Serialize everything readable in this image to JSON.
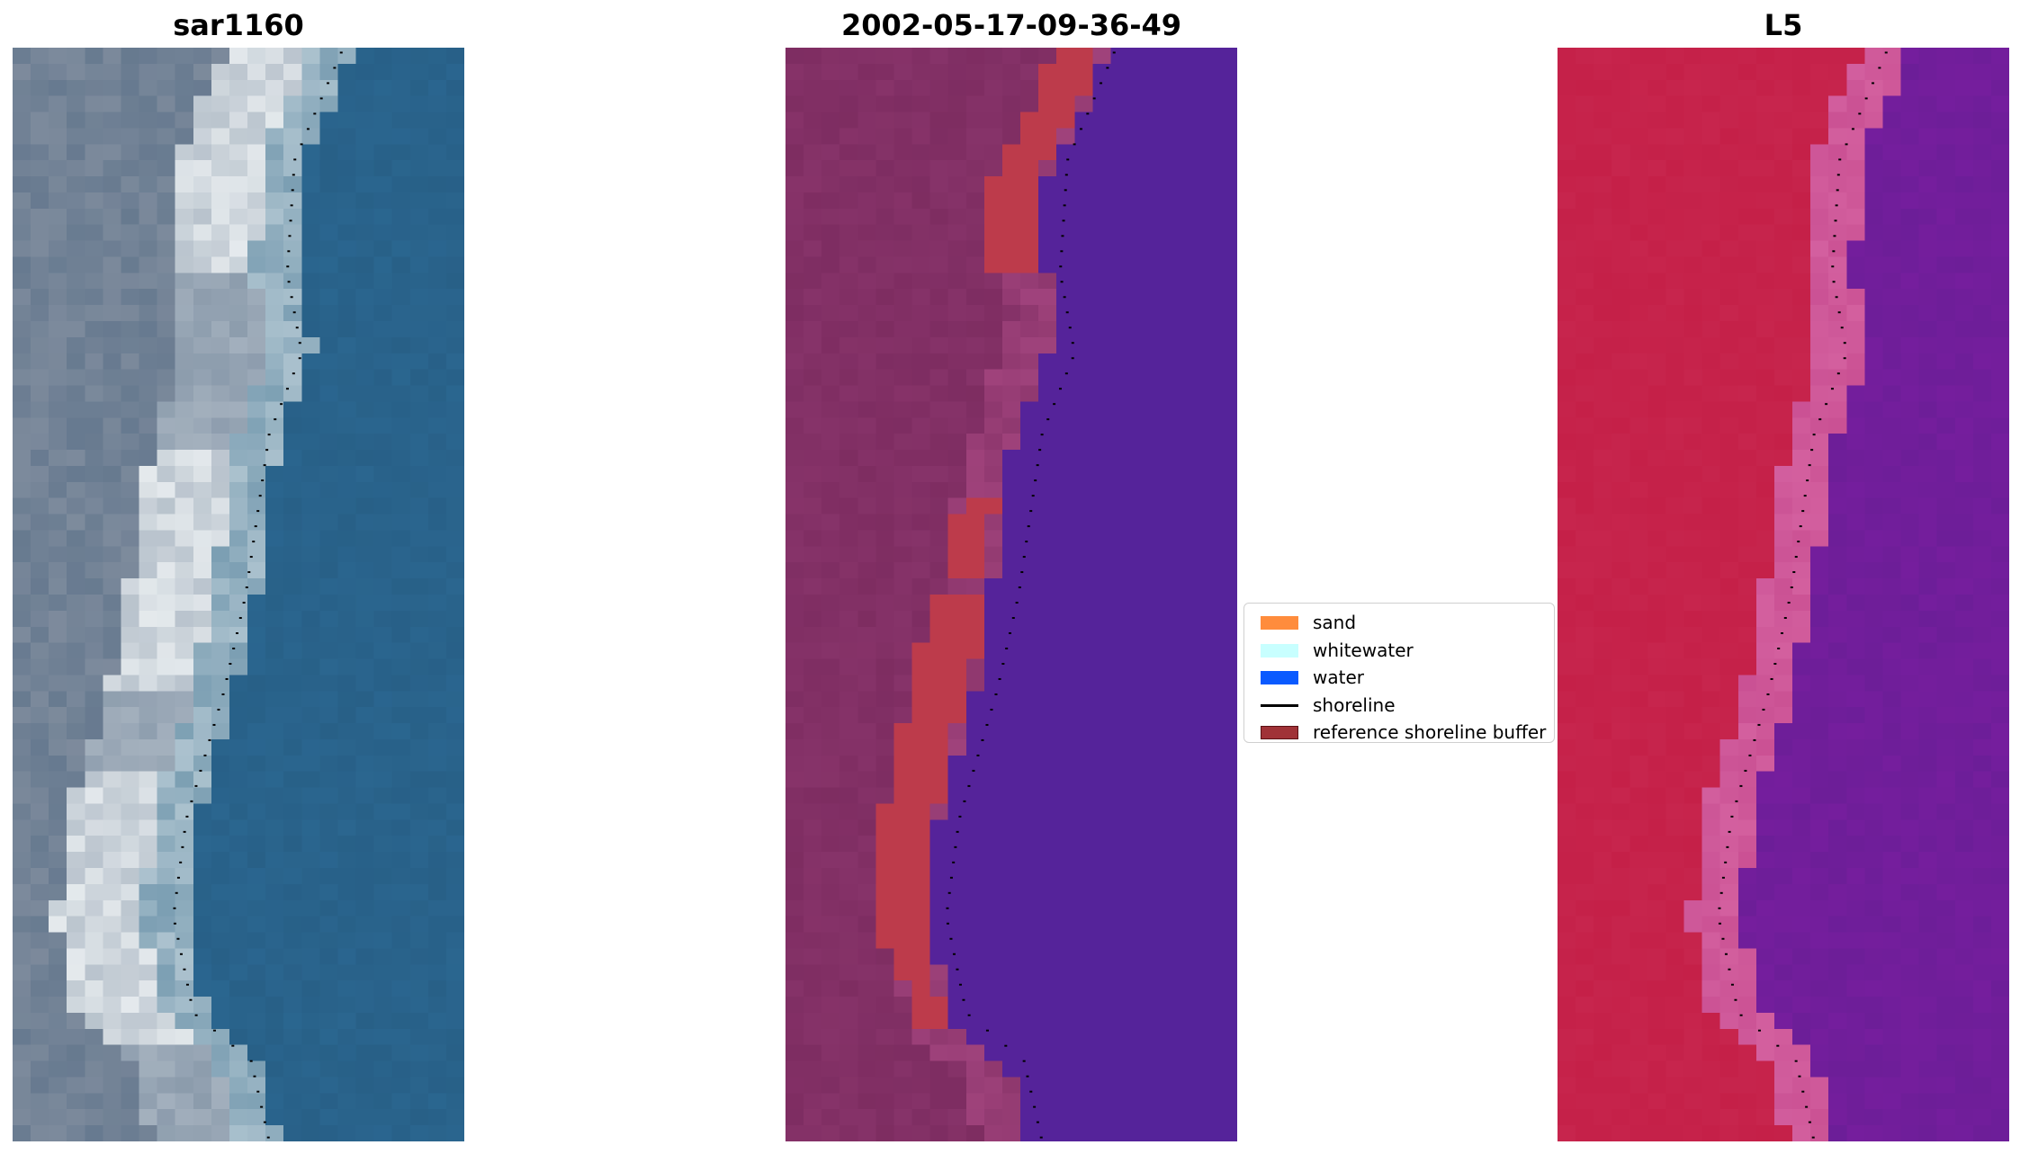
{
  "panels": [
    {
      "key": "rgb",
      "title": "sar1160",
      "image": "rgb-satellite-image",
      "kind": "rgb"
    },
    {
      "key": "class",
      "title": "2002-05-17-09-36-49",
      "image": "classified-image",
      "kind": "class"
    },
    {
      "key": "nir",
      "title": "L5",
      "image": "false-color-image",
      "kind": "nir"
    }
  ],
  "legend": {
    "items": [
      {
        "label": "sand",
        "type": "patch",
        "color": "#ff8c3c",
        "edge": "#ff8c3c",
        "icon": "sand-swatch"
      },
      {
        "label": "whitewater",
        "type": "patch",
        "color": "#c8ffff",
        "edge": "#c8ffff",
        "icon": "whitewater-swatch"
      },
      {
        "label": "water",
        "type": "patch",
        "color": "#0a5aff",
        "edge": "#0a5aff",
        "icon": "water-swatch"
      },
      {
        "label": "shoreline",
        "type": "line",
        "color": "#000000",
        "icon": "shoreline-line"
      },
      {
        "label": "reference shoreline buffer",
        "type": "patch",
        "color": "#a03237",
        "edge": "#5a1014",
        "icon": "buffer-swatch"
      }
    ]
  },
  "colors": {
    "rgb_water": "#2d6b96",
    "rgb_land": "#5a7088",
    "rgb_beach": "#f4f7f8",
    "class_land": "#7a2a5e",
    "class_water": "#55239a",
    "class_buffer": "#bd3b4b",
    "nir_land": "#c41e46",
    "nir_water": "#7a1ea0",
    "nir_beach": "#c64a8e",
    "shoreline": "#000000"
  }
}
